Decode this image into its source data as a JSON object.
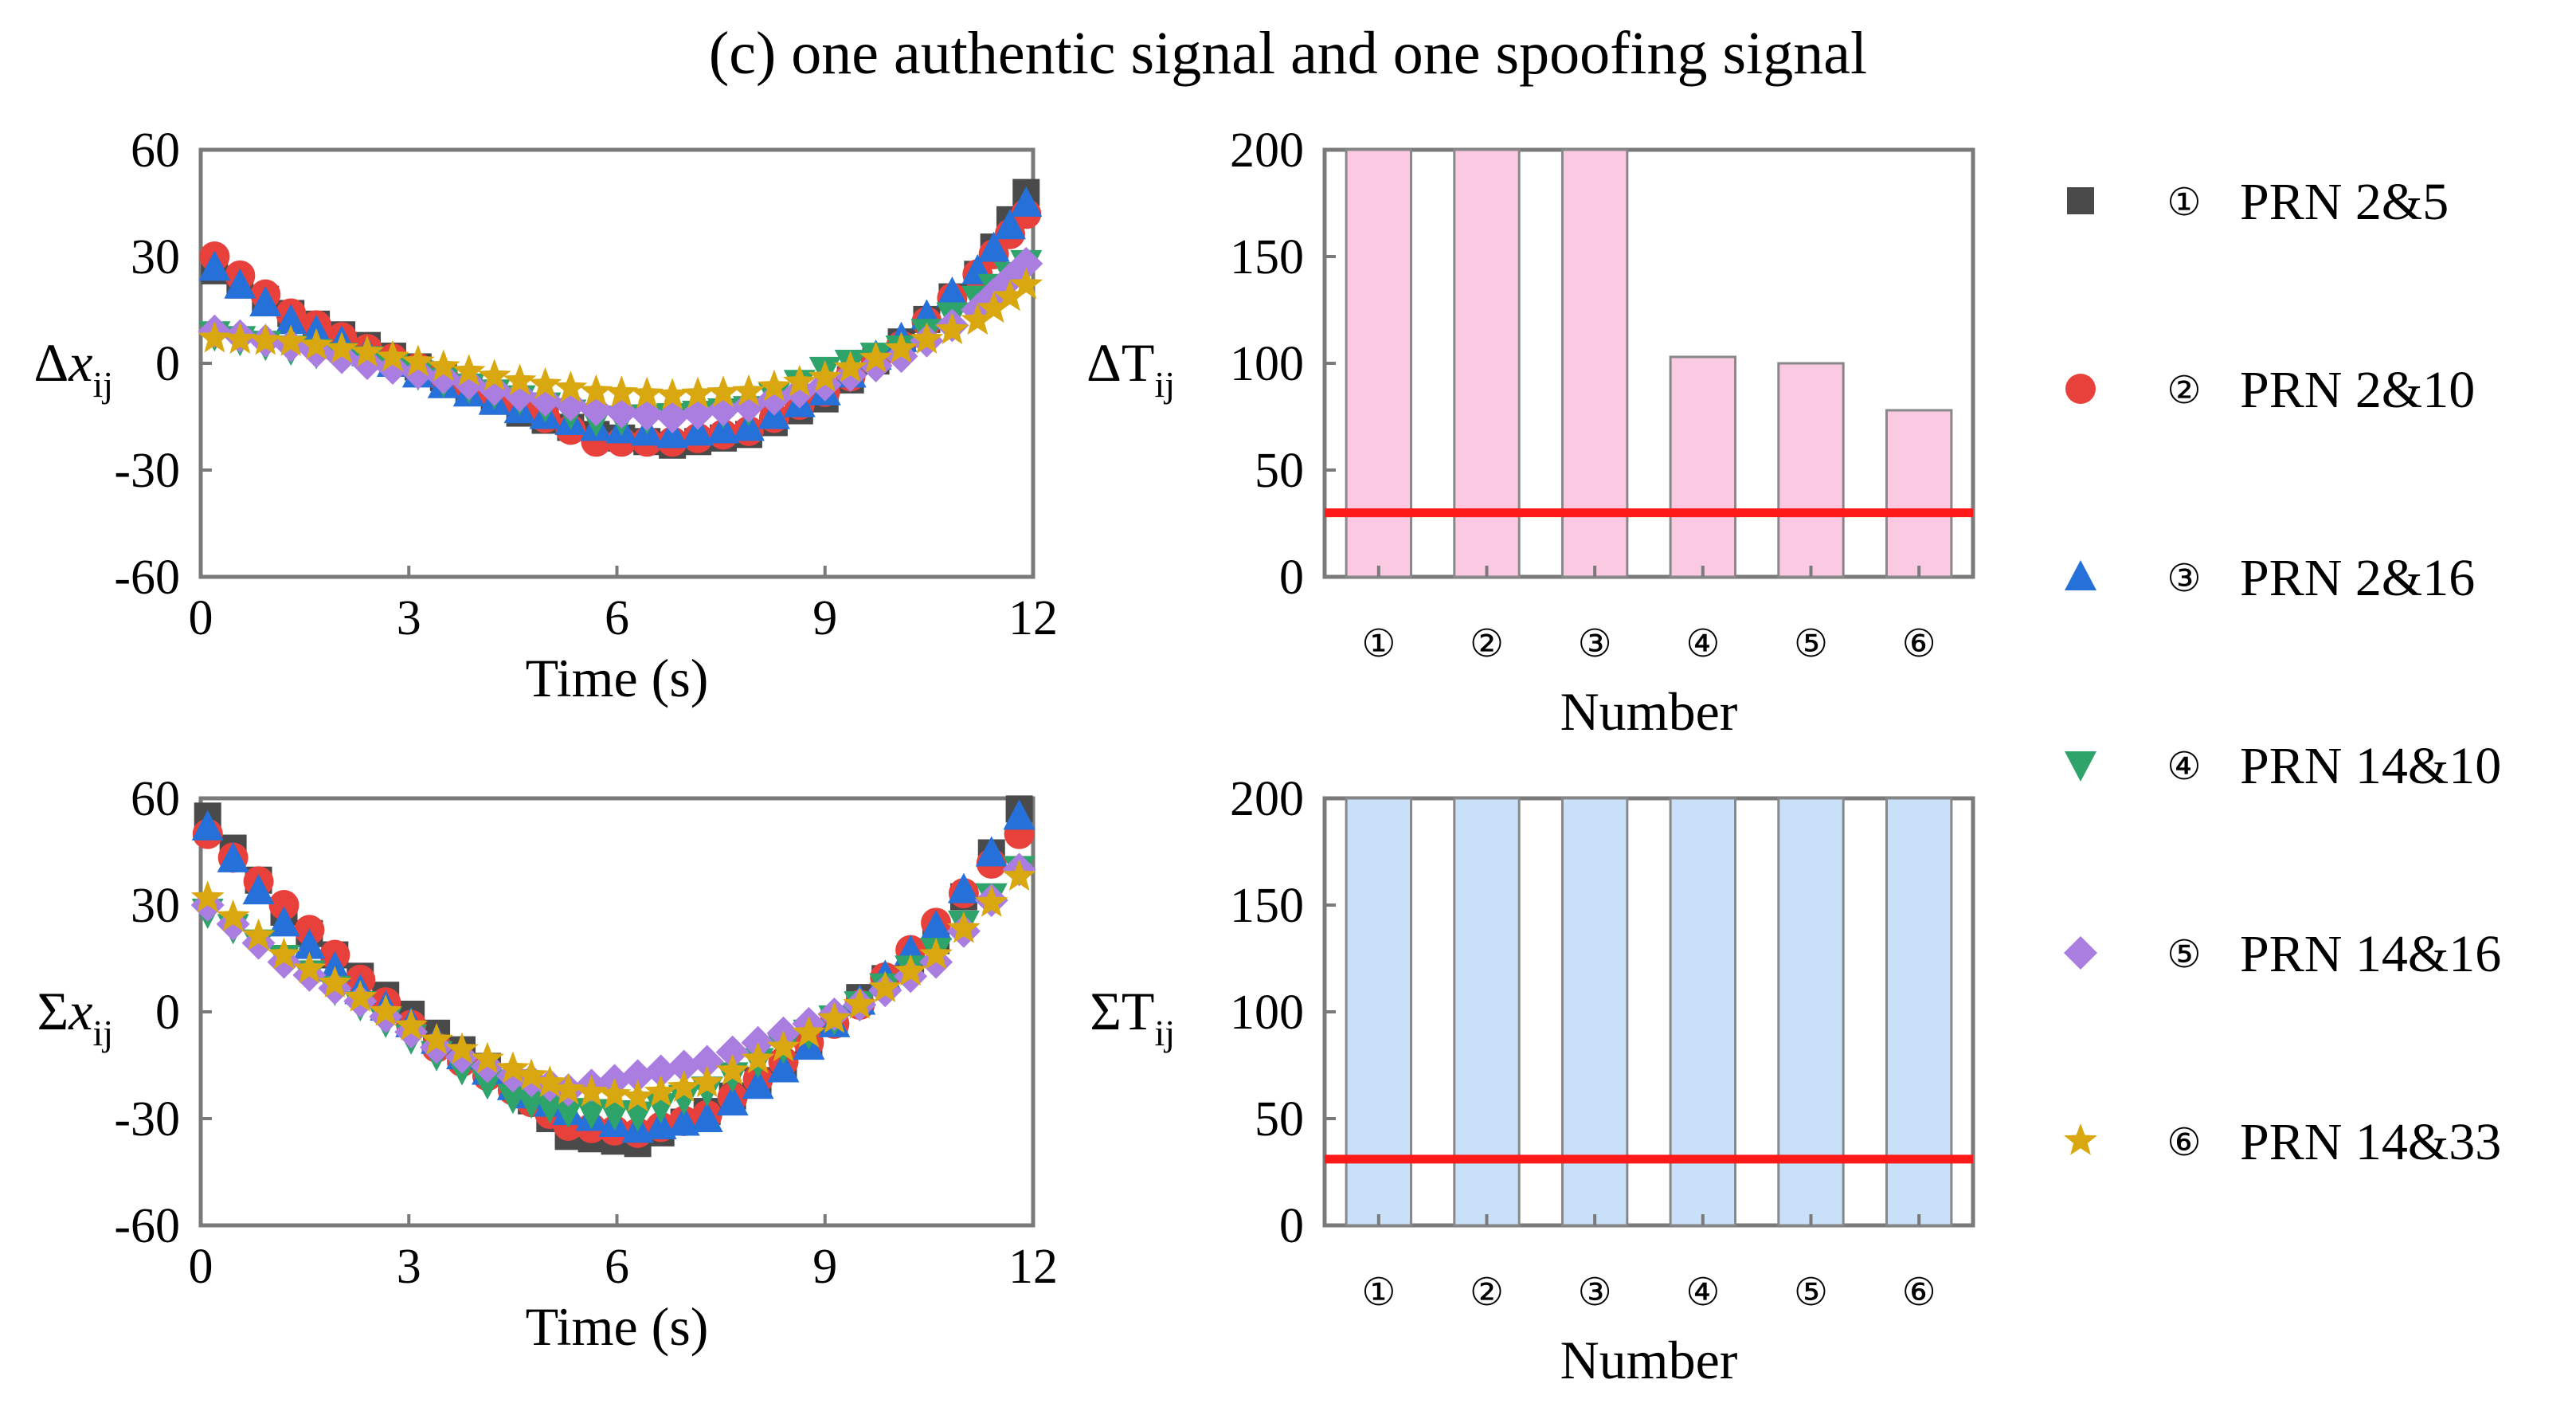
{
  "title": "(c) one authentic signal and one spoofing signal",
  "colors": {
    "prn_2_5": "#4a4a4a",
    "prn_2_10": "#e8403a",
    "prn_2_16": "#2670d9",
    "prn_14_10": "#2ea36a",
    "prn_14_16": "#a97ee0",
    "prn_14_33": "#d9a70f",
    "delta_bar": "#fcc9e2",
    "sigma_bar": "#c8e0f8",
    "threshold": "#ff1a1a",
    "axis": "#7a7a7a"
  },
  "chart_data": [
    {
      "id": "delta_x",
      "type": "scatter",
      "ylabel_main": "Δx",
      "ylabel_sub": "ij",
      "xlabel": "Time (s)",
      "xlim": [
        0,
        12
      ],
      "ylim": [
        -60,
        60
      ],
      "xticks": [
        "0",
        "3",
        "6",
        "9",
        "12"
      ],
      "yticks": [
        "60",
        "30",
        "0",
        "-30",
        "-60"
      ],
      "x": [
        0.2,
        1.3,
        2.4,
        3.5,
        4.6,
        5.7,
        6.8,
        7.9,
        9.0,
        10.1,
        11.2,
        11.9
      ],
      "series": [
        {
          "name": "① PRN 2&5",
          "marker": "square",
          "color_key": "prn_2_5",
          "values": [
            26,
            14,
            5,
            -4,
            -14,
            -20,
            -23,
            -20,
            -10,
            6,
            25,
            48
          ]
        },
        {
          "name": "② PRN 2&10",
          "marker": "circle",
          "color_key": "prn_2_10",
          "values": [
            30,
            14,
            4,
            -4,
            -12,
            -22,
            -22,
            -19,
            -8,
            5,
            25,
            42
          ]
        },
        {
          "name": "③ PRN 2&16",
          "marker": "triangle",
          "color_key": "prn_2_16",
          "values": [
            27,
            12,
            3,
            -6,
            -13,
            -18,
            -20,
            -18,
            -8,
            7,
            26,
            45
          ]
        },
        {
          "name": "④ PRN 14&10",
          "marker": "triangle-down",
          "color_key": "prn_14_10",
          "values": [
            8,
            4,
            1,
            -5,
            -10,
            -16,
            -15,
            -13,
            -2,
            4,
            18,
            28
          ]
        },
        {
          "name": "⑤ PRN 14&16",
          "marker": "diamond",
          "color_key": "prn_14_16",
          "values": [
            9,
            5,
            0,
            -4,
            -9,
            -13,
            -15,
            -12,
            -6,
            2,
            15,
            28
          ]
        },
        {
          "name": "⑥ PRN 14&33",
          "marker": "star",
          "color_key": "prn_14_33",
          "values": [
            7,
            6,
            3,
            -1,
            -5,
            -8,
            -9,
            -8,
            -4,
            4,
            12,
            22
          ]
        }
      ]
    },
    {
      "id": "sigma_x",
      "type": "scatter",
      "ylabel_main": "Σx",
      "ylabel_sub": "ij",
      "xlabel": "Time (s)",
      "xlim": [
        0,
        12
      ],
      "ylim": [
        -60,
        60
      ],
      "xticks": [
        "0",
        "3",
        "6",
        "9",
        "12"
      ],
      "yticks": [
        "60",
        "30",
        "0",
        "-30",
        "-60"
      ],
      "x": [
        0.1,
        1.2,
        2.3,
        3.4,
        4.5,
        5.3,
        6.3,
        7.3,
        8.4,
        9.5,
        10.6,
        11.8
      ],
      "series": [
        {
          "name": "① PRN 2&5",
          "marker": "square",
          "color_key": "prn_2_5",
          "values": [
            55,
            28,
            10,
            -6,
            -20,
            -35,
            -37,
            -28,
            -15,
            4,
            20,
            57
          ]
        },
        {
          "name": "② PRN 2&10",
          "marker": "circle",
          "color_key": "prn_2_10",
          "values": [
            50,
            30,
            9,
            -10,
            -22,
            -32,
            -34,
            -29,
            -14,
            2,
            25,
            50
          ]
        },
        {
          "name": "③ PRN 2&16",
          "marker": "triangle",
          "color_key": "prn_2_16",
          "values": [
            52,
            25,
            6,
            -8,
            -21,
            -28,
            -33,
            -30,
            -16,
            3,
            24,
            55
          ]
        },
        {
          "name": "④ PRN 14&10",
          "marker": "triangle-down",
          "color_key": "prn_14_10",
          "values": [
            28,
            15,
            2,
            -12,
            -24,
            -28,
            -29,
            -22,
            -10,
            2,
            17,
            40
          ]
        },
        {
          "name": "⑤ PRN 14&16",
          "marker": "diamond",
          "color_key": "prn_14_16",
          "values": [
            30,
            14,
            3,
            -10,
            -18,
            -22,
            -18,
            -14,
            -6,
            2,
            14,
            40
          ]
        },
        {
          "name": "⑥ PRN 14&33",
          "marker": "star",
          "color_key": "prn_14_33",
          "values": [
            32,
            16,
            4,
            -8,
            -16,
            -22,
            -24,
            -20,
            -10,
            2,
            16,
            38
          ]
        }
      ]
    },
    {
      "id": "delta_T",
      "type": "bar",
      "ylabel_main": "ΔT",
      "ylabel_sub": "ij",
      "xlabel": "Number",
      "ylim": [
        0,
        200
      ],
      "yticks": [
        "200",
        "150",
        "100",
        "50",
        "0"
      ],
      "categories": [
        "①",
        "②",
        "③",
        "④",
        "⑤",
        "⑥"
      ],
      "values": [
        200,
        200,
        200,
        103,
        100,
        78
      ],
      "threshold": 30,
      "bar_color_key": "delta_bar"
    },
    {
      "id": "sigma_T",
      "type": "bar",
      "ylabel_main": "ΣT",
      "ylabel_sub": "ij",
      "xlabel": "Number",
      "ylim": [
        0,
        200
      ],
      "yticks": [
        "200",
        "150",
        "100",
        "50",
        "0"
      ],
      "categories": [
        "①",
        "②",
        "③",
        "④",
        "⑤",
        "⑥"
      ],
      "values": [
        200,
        200,
        200,
        200,
        200,
        200
      ],
      "threshold": 31,
      "bar_color_key": "sigma_bar"
    }
  ],
  "legend": [
    {
      "num": "①",
      "label": "PRN 2&5",
      "marker": "square",
      "color_key": "prn_2_5"
    },
    {
      "num": "②",
      "label": "PRN 2&10",
      "marker": "circle",
      "color_key": "prn_2_10"
    },
    {
      "num": "③",
      "label": "PRN 2&16",
      "marker": "triangle",
      "color_key": "prn_2_16"
    },
    {
      "num": "④",
      "label": "PRN 14&10",
      "marker": "triangle-down",
      "color_key": "prn_14_10"
    },
    {
      "num": "⑤",
      "label": "PRN 14&16",
      "marker": "diamond",
      "color_key": "prn_14_16"
    },
    {
      "num": "⑥",
      "label": "PRN 14&33",
      "marker": "star",
      "color_key": "prn_14_33"
    }
  ]
}
